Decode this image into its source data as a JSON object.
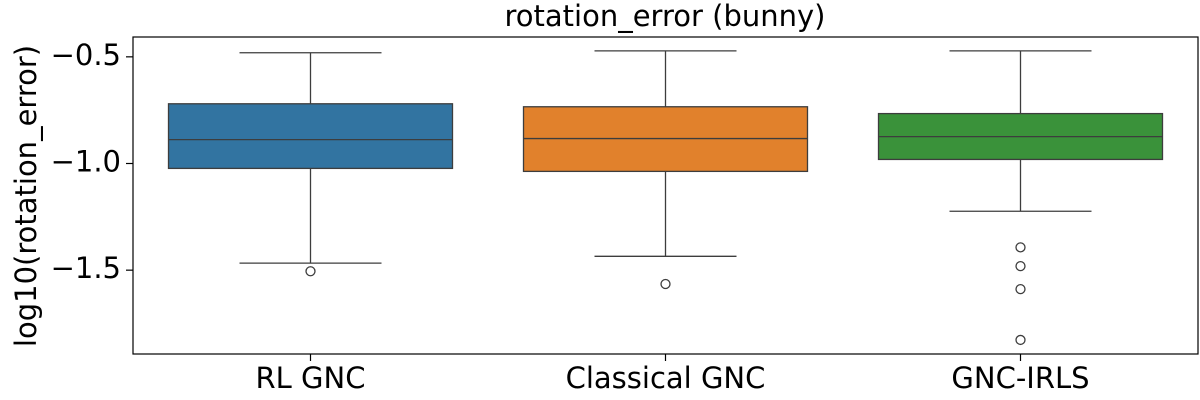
{
  "chart_data": {
    "type": "box",
    "title": "rotation_error (bunny)",
    "ylabel": "log10(rotation_error)",
    "categories": [
      "RL GNC",
      "Classical GNC",
      "GNC-IRLS"
    ],
    "colors": [
      "#3274a1",
      "#e1812c",
      "#3a923a"
    ],
    "boxes": [
      {
        "whislo": -1.467,
        "q1": -1.023,
        "med": -0.888,
        "q3": -0.72,
        "whishi": -0.481,
        "fliers": [
          -1.505
        ]
      },
      {
        "whislo": -1.435,
        "q1": -1.037,
        "med": -0.883,
        "q3": -0.734,
        "whishi": -0.472,
        "fliers": [
          -1.565
        ]
      },
      {
        "whislo": -1.224,
        "q1": -0.981,
        "med": -0.874,
        "q3": -0.766,
        "whishi": -0.472,
        "fliers": [
          -1.393,
          -1.481,
          -1.589,
          -1.827
        ]
      }
    ],
    "ylim": [
      -1.893,
      -0.407
    ],
    "yticks": [
      {
        "value": -0.5,
        "label": "−0.5"
      },
      {
        "value": -1.0,
        "label": "−1.0"
      },
      {
        "value": -1.5,
        "label": "−1.5"
      }
    ]
  }
}
